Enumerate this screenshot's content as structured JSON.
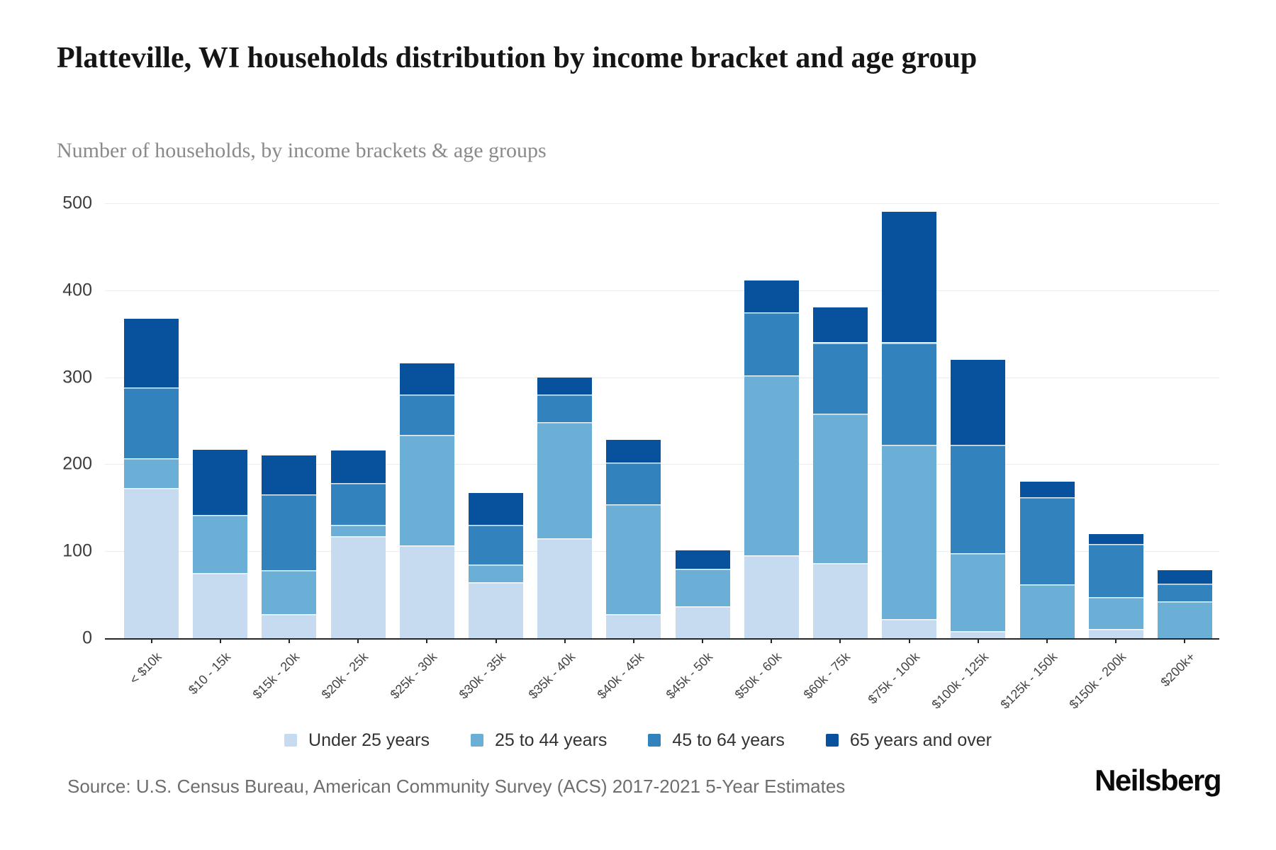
{
  "header": {
    "title": "Platteville, WI households distribution by income bracket and age group",
    "subtitle": "Number of households, by income brackets & age groups"
  },
  "chart_data": {
    "type": "bar",
    "stacked": true,
    "title": "Platteville, WI households distribution by income bracket and age group",
    "xlabel": "",
    "ylabel": "",
    "ylim": [
      0,
      500
    ],
    "yticks": [
      0,
      100,
      200,
      300,
      400,
      500
    ],
    "grid": true,
    "legend_position": "bottom",
    "categories": [
      "< $10k",
      "$10 - 15k",
      "$15k - 20k",
      "$20k - 25k",
      "$25k - 30k",
      "$30k - 35k",
      "$35k - 40k",
      "$40k - 45k",
      "$45k - 50k",
      "$50k - 60k",
      "$60k - 75k",
      "$75k - 100k",
      "$100k - 125k",
      "$125k - 150k",
      "$150k - 200k",
      "$200k+"
    ],
    "series": [
      {
        "name": "Under 25 years",
        "color": "#c6dbef",
        "values": [
          173,
          75,
          28,
          117,
          107,
          64,
          115,
          28,
          37,
          95,
          86,
          22,
          8,
          0,
          11,
          0
        ]
      },
      {
        "name": "25 to 44 years",
        "color": "#6baed6",
        "values": [
          34,
          67,
          50,
          13,
          127,
          21,
          133,
          126,
          43,
          207,
          172,
          200,
          90,
          62,
          36,
          42
        ]
      },
      {
        "name": "45 to 64 years",
        "color": "#3182bd",
        "values": [
          81,
          0,
          87,
          48,
          46,
          45,
          32,
          48,
          0,
          73,
          82,
          118,
          124,
          100,
          61,
          21
        ]
      },
      {
        "name": "65 years and over",
        "color": "#08519c",
        "values": [
          79,
          75,
          45,
          38,
          36,
          37,
          20,
          26,
          21,
          36,
          40,
          150,
          98,
          18,
          12,
          15
        ]
      }
    ],
    "totals": [
      367,
      217,
      210,
      216,
      316,
      167,
      300,
      228,
      101,
      411,
      380,
      490,
      320,
      180,
      120,
      78
    ]
  },
  "footer": {
    "source": "Source: U.S. Census Bureau, American Community Survey (ACS) 2017-2021 5-Year Estimates",
    "logo": "Neilsberg"
  }
}
